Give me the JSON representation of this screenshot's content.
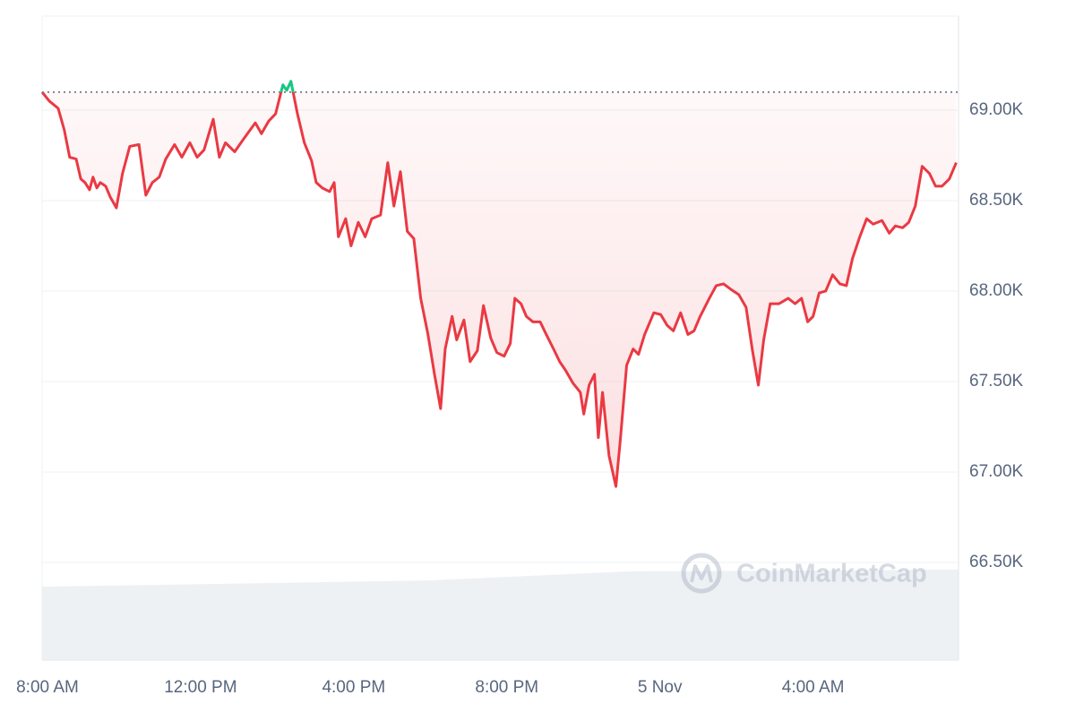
{
  "chart_data": {
    "type": "line",
    "x": [
      7.86,
      8.05,
      8.28,
      8.44,
      8.58,
      8.75,
      8.87,
      8.98,
      9.1,
      9.19,
      9.29,
      9.38,
      9.52,
      9.64,
      9.8,
      9.96,
      10.15,
      10.39,
      10.57,
      10.74,
      10.92,
      11.09,
      11.32,
      11.51,
      11.72,
      11.91,
      12.09,
      12.33,
      12.49,
      12.65,
      12.89,
      13.12,
      13.43,
      13.59,
      13.78,
      13.96,
      14.15,
      14.25,
      14.36,
      14.53,
      14.71,
      14.9,
      15.02,
      15.18,
      15.37,
      15.49,
      15.6,
      15.79,
      15.93,
      16.12,
      16.3,
      16.47,
      16.7,
      16.89,
      17.05,
      17.22,
      17.4,
      17.57,
      17.75,
      17.94,
      18.11,
      18.27,
      18.39,
      18.57,
      18.69,
      18.88,
      19.04,
      19.23,
      19.39,
      19.58,
      19.74,
      19.93,
      20.09,
      20.21,
      20.37,
      20.51,
      20.68,
      20.87,
      21.03,
      21.22,
      21.38,
      21.54,
      21.73,
      21.92,
      22.01,
      22.15,
      22.29,
      22.39,
      22.5,
      22.67,
      22.85,
      22.97,
      23.13,
      23.3,
      23.44,
      23.6,
      23.84,
      24.02,
      24.19,
      24.35,
      24.54,
      24.73,
      24.89,
      25.05,
      25.29,
      25.47,
      25.66,
      25.85,
      26.06,
      26.25,
      26.41,
      26.57,
      26.71,
      26.88,
      27.11,
      27.35,
      27.53,
      27.7,
      27.86,
      28.0,
      28.16,
      28.33,
      28.51,
      28.7,
      28.87,
      29.03,
      29.22,
      29.4,
      29.57,
      29.8,
      29.99,
      30.15,
      30.34,
      30.5,
      30.67,
      30.85,
      31.04,
      31.2,
      31.37,
      31.56,
      31.74
    ],
    "series": [
      {
        "color": "#ea3943",
        "color_above": "#16c784",
        "values": [
          69100,
          69050,
          69010,
          68890,
          68740,
          68730,
          68620,
          68600,
          68560,
          68630,
          68570,
          68600,
          68580,
          68520,
          68460,
          68650,
          68800,
          68810,
          68530,
          68600,
          68630,
          68730,
          68810,
          68740,
          68820,
          68740,
          68780,
          68950,
          68740,
          68820,
          68770,
          68840,
          68930,
          68870,
          68940,
          68980,
          69140,
          69110,
          69160,
          68980,
          68820,
          68720,
          68600,
          68570,
          68550,
          68600,
          68300,
          68400,
          68250,
          68380,
          68300,
          68400,
          68420,
          68710,
          68470,
          68660,
          68330,
          68290,
          67960,
          67760,
          67540,
          67350,
          67680,
          67860,
          67730,
          67840,
          67610,
          67670,
          67920,
          67740,
          67660,
          67640,
          67710,
          67960,
          67930,
          67860,
          67830,
          67830,
          67760,
          67680,
          67610,
          67560,
          67490,
          67440,
          67320,
          67480,
          67540,
          67190,
          67440,
          67090,
          66920,
          67190,
          67590,
          67680,
          67650,
          67760,
          67880,
          67870,
          67810,
          67780,
          67880,
          67760,
          67780,
          67860,
          67960,
          68030,
          68040,
          68010,
          67980,
          67910,
          67680,
          67480,
          67730,
          67930,
          67930,
          67960,
          67930,
          67960,
          67830,
          67860,
          67990,
          68000,
          68090,
          68040,
          68030,
          68180,
          68300,
          68400,
          68370,
          68390,
          68320,
          68360,
          68350,
          68380,
          68470,
          68690,
          68650,
          68580,
          68580,
          68620,
          68710
        ]
      }
    ],
    "reference_value": 69100,
    "xlim": [
      7.86,
      31.8
    ],
    "xticks": [
      {
        "value": 8,
        "label": "8:00 AM"
      },
      {
        "value": 12,
        "label": "12:00 PM"
      },
      {
        "value": 16,
        "label": "4:00 PM"
      },
      {
        "value": 20,
        "label": "8:00 PM"
      },
      {
        "value": 24,
        "label": "5 Nov"
      },
      {
        "value": 28,
        "label": "4:00 AM"
      }
    ],
    "ylim": [
      65960,
      69520
    ],
    "yticks": [
      {
        "value": 66500,
        "label": "66.50K"
      },
      {
        "value": 67000,
        "label": "67.00K"
      },
      {
        "value": 67500,
        "label": "67.50K"
      },
      {
        "value": 68000,
        "label": "68.00K"
      },
      {
        "value": 68500,
        "label": "68.50K"
      },
      {
        "value": 69000,
        "label": "69.00K"
      }
    ],
    "grid": true,
    "watermark": "CoinMarketCap"
  }
}
